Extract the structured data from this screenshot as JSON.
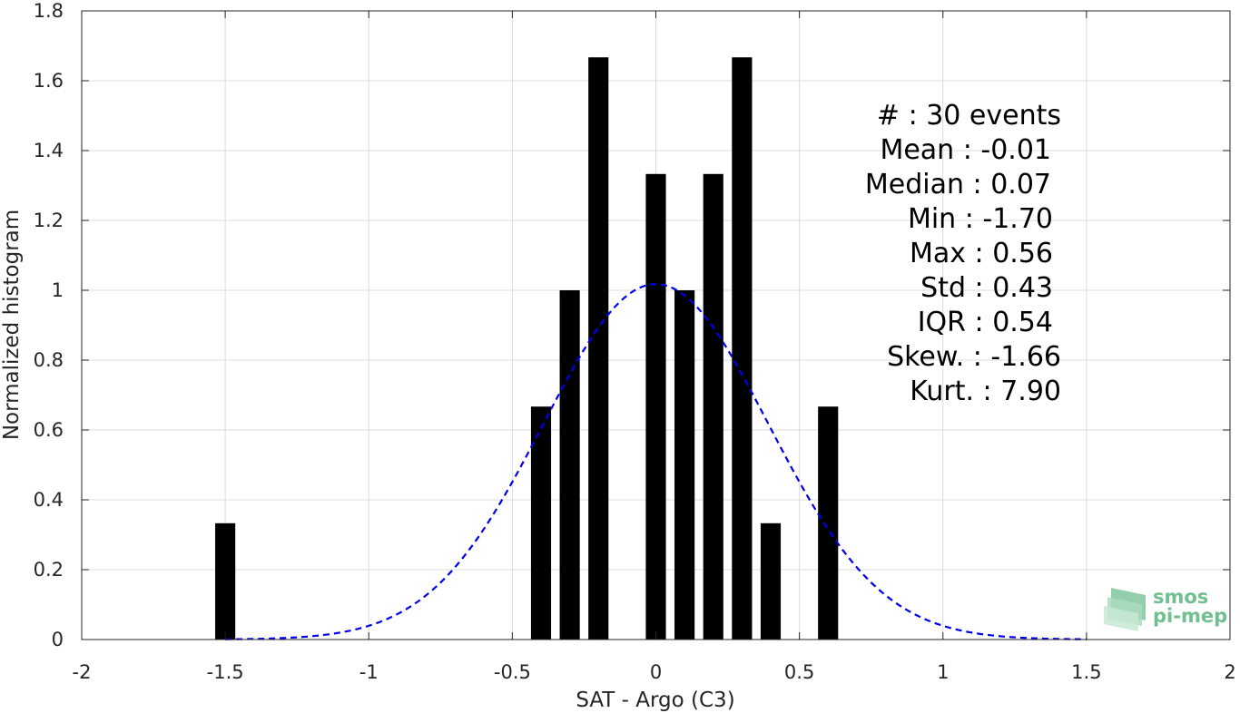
{
  "chart_data": {
    "type": "bar",
    "xlabel": "SAT - Argo (C3)",
    "ylabel": "Normalized histogram",
    "xlim": [
      -2,
      2
    ],
    "ylim": [
      0,
      1.8
    ],
    "xticks": [
      "-2",
      "-1.5",
      "-1",
      "-0.5",
      "0",
      "0.5",
      "1",
      "1.5",
      "2"
    ],
    "yticks": [
      "0",
      "0.2",
      "0.4",
      "0.6",
      "0.8",
      "1",
      "1.2",
      "1.4",
      "1.6",
      "1.8"
    ],
    "grid": true,
    "bar_color": "#000000",
    "bars": [
      {
        "x": -1.5,
        "value": 0.333
      },
      {
        "x": -0.4,
        "value": 0.667
      },
      {
        "x": -0.3,
        "value": 1.0
      },
      {
        "x": -0.2,
        "value": 1.667
      },
      {
        "x": 0.0,
        "value": 1.333
      },
      {
        "x": 0.1,
        "value": 1.0
      },
      {
        "x": 0.2,
        "value": 1.333
      },
      {
        "x": 0.3,
        "value": 1.667
      },
      {
        "x": 0.4,
        "value": 0.333
      },
      {
        "x": 0.6,
        "value": 0.667
      }
    ],
    "fit_curve": {
      "style": "dashed",
      "color": "#0000ee",
      "mean": 0.0,
      "std": 0.392,
      "x_range": [
        -1.5,
        1.5
      ]
    },
    "annotations": [
      "#  : 30 events",
      "Mean : -0.01",
      "Median : 0.07",
      "Min : -1.70",
      "Max : 0.56",
      "Std : 0.43",
      "IQR : 0.54",
      "Skew. : -1.66",
      "Kurt. : 7.90"
    ]
  },
  "logo": {
    "line1": "smos",
    "line2": "pi-mep",
    "color_main": "#6fbf8f",
    "color_dark": "#4e8f6b"
  }
}
